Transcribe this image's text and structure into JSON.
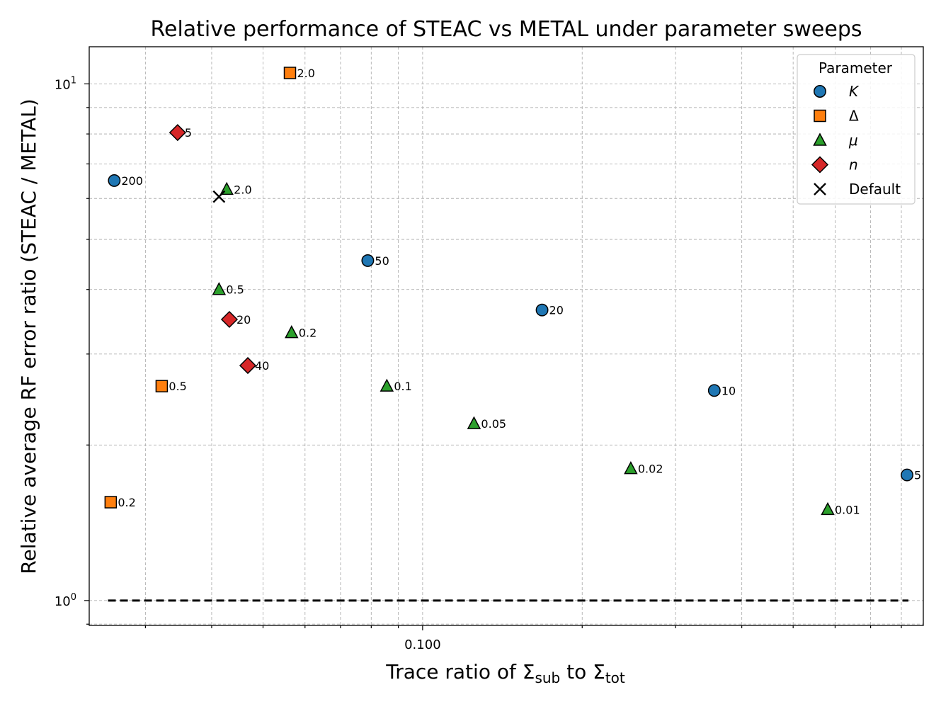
{
  "chart_data": {
    "type": "scatter",
    "title": "Relative performance of STEAC vs METAL under parameter sweeps",
    "xlabel": {
      "main": "Trace ratio of Σ",
      "sub1": "sub",
      "mid": " to Σ",
      "sub2": "tot"
    },
    "ylabel": "Relative average RF error ratio (STEAC / METAL)",
    "xscale": "log",
    "yscale": "log",
    "xlim": [
      0.0235,
      0.88
    ],
    "ylim": [
      0.895,
      11.8
    ],
    "x_ticks": [
      {
        "value": 0.1,
        "label": "0.100"
      }
    ],
    "y_ticks": [
      {
        "value": 1,
        "base": "10",
        "exp": "0"
      },
      {
        "value": 10,
        "base": "10",
        "exp": "1"
      }
    ],
    "grid": true,
    "reference_line": {
      "y": 1.0,
      "x_range": [
        0.0255,
        0.825
      ],
      "style": "dashed",
      "color": "#000000"
    },
    "legend": {
      "title": "Parameter",
      "placement": "top-right",
      "entries": [
        {
          "label": "K",
          "italic": true,
          "marker": "circle",
          "color": "#1f77b4"
        },
        {
          "label": "Δ",
          "italic": false,
          "marker": "square",
          "color": "#ff7f0e"
        },
        {
          "label": "μ",
          "italic": true,
          "marker": "triangle",
          "color": "#2ca02c"
        },
        {
          "label": "n",
          "italic": true,
          "marker": "diamond",
          "color": "#d62728"
        },
        {
          "label": "Default",
          "italic": false,
          "marker": "x",
          "color": "#000000"
        }
      ]
    },
    "series": [
      {
        "name": "K",
        "marker": "circle",
        "color": "#1f77b4",
        "points": [
          {
            "x": 0.0262,
            "y": 6.5,
            "label": "200"
          },
          {
            "x": 0.0788,
            "y": 4.55,
            "label": "50"
          },
          {
            "x": 0.168,
            "y": 3.65,
            "label": "20"
          },
          {
            "x": 0.355,
            "y": 2.55,
            "label": "10"
          },
          {
            "x": 0.82,
            "y": 1.75,
            "label": "5"
          }
        ]
      },
      {
        "name": "Δ",
        "marker": "square",
        "color": "#ff7f0e",
        "points": [
          {
            "x": 0.0258,
            "y": 1.55,
            "label": "0.2"
          },
          {
            "x": 0.0322,
            "y": 2.6,
            "label": "0.5"
          },
          {
            "x": 0.0562,
            "y": 10.5,
            "label": "2.0"
          }
        ]
      },
      {
        "name": "μ",
        "marker": "triangle",
        "color": "#2ca02c",
        "points": [
          {
            "x": 0.0413,
            "y": 4.0,
            "label": "0.5"
          },
          {
            "x": 0.0427,
            "y": 6.25,
            "label": "2.0"
          },
          {
            "x": 0.0566,
            "y": 3.3,
            "label": "0.2"
          },
          {
            "x": 0.0856,
            "y": 2.6,
            "label": "0.1"
          },
          {
            "x": 0.125,
            "y": 2.2,
            "label": "0.05"
          },
          {
            "x": 0.247,
            "y": 1.8,
            "label": "0.02"
          },
          {
            "x": 0.581,
            "y": 1.5,
            "label": "0.01"
          }
        ]
      },
      {
        "name": "n",
        "marker": "diamond",
        "color": "#d62728",
        "points": [
          {
            "x": 0.0345,
            "y": 8.05,
            "label": "5"
          },
          {
            "x": 0.0432,
            "y": 3.5,
            "label": "20"
          },
          {
            "x": 0.0468,
            "y": 2.85,
            "label": "40"
          }
        ]
      },
      {
        "name": "Default",
        "marker": "x",
        "color": "#000000",
        "points": [
          {
            "x": 0.0413,
            "y": 6.05,
            "label": ""
          }
        ]
      }
    ]
  }
}
